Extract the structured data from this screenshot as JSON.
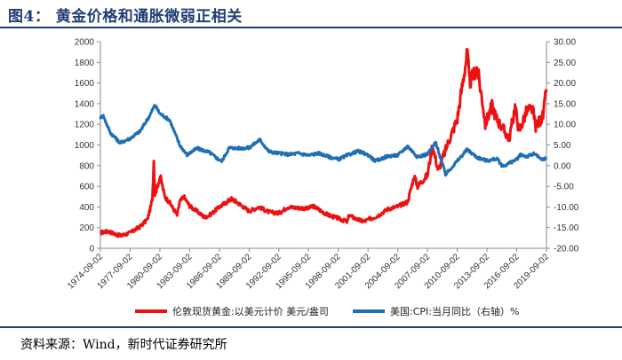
{
  "title": "图4：  黄金价格和通胀微弱正相关",
  "source": "资料来源：Wind，新时代证券研究所",
  "colors": {
    "gold": "#ee1111",
    "cpi": "#1f6fb2",
    "title": "#1f3f77"
  },
  "chart_data": {
    "type": "line",
    "title": "",
    "xlabel": "",
    "ylabel_left": "",
    "ylabel_right": "",
    "y_left": {
      "min": 0,
      "max": 2000,
      "ticks": [
        "0",
        "200",
        "400",
        "600",
        "800",
        "1000",
        "1200",
        "1400",
        "1600",
        "1800",
        "2000"
      ]
    },
    "y_right": {
      "min": -20,
      "max": 30,
      "ticks": [
        "-20.00",
        "-15.00",
        "-10.00",
        "-5.00",
        "0.00",
        "5.00",
        "10.00",
        "15.00",
        "20.00",
        "25.00",
        "30.00"
      ]
    },
    "x_range": [
      "1974-09-02",
      "2019-09-02"
    ],
    "x_ticks": [
      "1974-09-02",
      "1977-09-02",
      "1980-09-02",
      "1983-09-02",
      "1986-09-02",
      "1989-09-02",
      "1992-09-02",
      "1995-09-02",
      "1998-09-02",
      "2001-09-02",
      "2004-09-02",
      "2007-09-02",
      "2010-09-02",
      "2013-09-02",
      "2016-09-02",
      "2019-09-02"
    ],
    "legend_position": "bottom",
    "grid": false,
    "series": [
      {
        "name": "伦敦现货黄金:以美元计价 美元/盎司",
        "axis": "left",
        "color": "#ee1111",
        "points": [
          [
            "1974-09-02",
            150
          ],
          [
            "1975-06-01",
            165
          ],
          [
            "1976-09-01",
            120
          ],
          [
            "1977-09-01",
            150
          ],
          [
            "1978-09-01",
            210
          ],
          [
            "1979-06-01",
            280
          ],
          [
            "1979-09-01",
            370
          ],
          [
            "1979-12-01",
            480
          ],
          [
            "1980-01-21",
            850
          ],
          [
            "1980-03-01",
            520
          ],
          [
            "1980-06-01",
            600
          ],
          [
            "1980-09-15",
            700
          ],
          [
            "1981-03-01",
            500
          ],
          [
            "1981-09-01",
            440
          ],
          [
            "1982-06-01",
            320
          ],
          [
            "1982-09-01",
            450
          ],
          [
            "1983-02-01",
            500
          ],
          [
            "1983-09-01",
            410
          ],
          [
            "1984-09-01",
            340
          ],
          [
            "1985-03-01",
            300
          ],
          [
            "1985-09-01",
            320
          ],
          [
            "1986-09-01",
            400
          ],
          [
            "1987-12-01",
            480
          ],
          [
            "1988-09-01",
            430
          ],
          [
            "1989-09-01",
            360
          ],
          [
            "1990-09-01",
            400
          ],
          [
            "1991-09-01",
            350
          ],
          [
            "1992-09-01",
            340
          ],
          [
            "1993-08-01",
            400
          ],
          [
            "1994-09-01",
            390
          ],
          [
            "1995-09-01",
            385
          ],
          [
            "1996-02-01",
            410
          ],
          [
            "1997-09-01",
            320
          ],
          [
            "1998-09-01",
            290
          ],
          [
            "1999-08-01",
            255
          ],
          [
            "1999-10-01",
            320
          ],
          [
            "2000-09-01",
            275
          ],
          [
            "2001-04-01",
            260
          ],
          [
            "2002-09-01",
            315
          ],
          [
            "2003-09-01",
            380
          ],
          [
            "2004-09-01",
            405
          ],
          [
            "2005-09-01",
            450
          ],
          [
            "2006-05-01",
            700
          ],
          [
            "2006-09-01",
            600
          ],
          [
            "2007-09-01",
            710
          ],
          [
            "2008-03-01",
            1000
          ],
          [
            "2008-10-01",
            750
          ],
          [
            "2009-09-01",
            1000
          ],
          [
            "2010-09-01",
            1250
          ],
          [
            "2011-09-06",
            1895
          ],
          [
            "2011-12-01",
            1600
          ],
          [
            "2012-09-01",
            1750
          ],
          [
            "2013-04-01",
            1400
          ],
          [
            "2013-06-28",
            1200
          ],
          [
            "2014-03-01",
            1380
          ],
          [
            "2014-09-01",
            1250
          ],
          [
            "2015-12-01",
            1060
          ],
          [
            "2016-07-01",
            1370
          ],
          [
            "2016-12-01",
            1130
          ],
          [
            "2017-09-01",
            1330
          ],
          [
            "2018-04-01",
            1350
          ],
          [
            "2018-08-01",
            1180
          ],
          [
            "2019-05-01",
            1280
          ],
          [
            "2019-09-02",
            1540
          ]
        ]
      },
      {
        "name": "美国:CPI:当月同比（右轴）%",
        "axis": "right",
        "color": "#1f6fb2",
        "points": [
          [
            "1974-09-02",
            11.5
          ],
          [
            "1974-12-01",
            12.3
          ],
          [
            "1975-09-01",
            8.0
          ],
          [
            "1976-09-01",
            5.5
          ],
          [
            "1977-09-01",
            6.6
          ],
          [
            "1978-09-01",
            8.3
          ],
          [
            "1979-09-01",
            12.2
          ],
          [
            "1980-03-01",
            14.7
          ],
          [
            "1980-09-01",
            12.6
          ],
          [
            "1981-09-01",
            11.0
          ],
          [
            "1982-09-01",
            5.0
          ],
          [
            "1983-06-01",
            2.6
          ],
          [
            "1984-06-01",
            4.2
          ],
          [
            "1985-09-01",
            3.2
          ],
          [
            "1986-06-01",
            1.8
          ],
          [
            "1986-12-01",
            1.1
          ],
          [
            "1987-09-01",
            4.3
          ],
          [
            "1988-09-01",
            4.2
          ],
          [
            "1989-09-01",
            4.3
          ],
          [
            "1990-10-01",
            6.3
          ],
          [
            "1991-09-01",
            3.4
          ],
          [
            "1992-09-01",
            3.0
          ],
          [
            "1993-09-01",
            2.7
          ],
          [
            "1994-09-01",
            3.0
          ],
          [
            "1995-09-01",
            2.5
          ],
          [
            "1996-09-01",
            3.0
          ],
          [
            "1997-09-01",
            2.2
          ],
          [
            "1998-09-01",
            1.5
          ],
          [
            "1999-09-01",
            2.6
          ],
          [
            "2000-09-01",
            3.5
          ],
          [
            "2001-09-01",
            2.6
          ],
          [
            "2002-06-01",
            1.1
          ],
          [
            "2003-09-01",
            2.3
          ],
          [
            "2004-09-01",
            2.5
          ],
          [
            "2005-09-01",
            4.7
          ],
          [
            "2006-09-01",
            2.1
          ],
          [
            "2007-09-01",
            2.8
          ],
          [
            "2008-07-01",
            5.6
          ],
          [
            "2009-07-01",
            -2.1
          ],
          [
            "2010-09-01",
            1.1
          ],
          [
            "2011-09-01",
            3.9
          ],
          [
            "2012-09-01",
            2.0
          ],
          [
            "2013-09-01",
            1.2
          ],
          [
            "2014-09-01",
            1.7
          ],
          [
            "2015-04-01",
            -0.2
          ],
          [
            "2016-09-01",
            1.5
          ],
          [
            "2017-02-01",
            2.7
          ],
          [
            "2017-09-01",
            2.2
          ],
          [
            "2018-07-01",
            2.9
          ],
          [
            "2019-02-01",
            1.5
          ],
          [
            "2019-09-02",
            1.7
          ]
        ]
      }
    ]
  }
}
